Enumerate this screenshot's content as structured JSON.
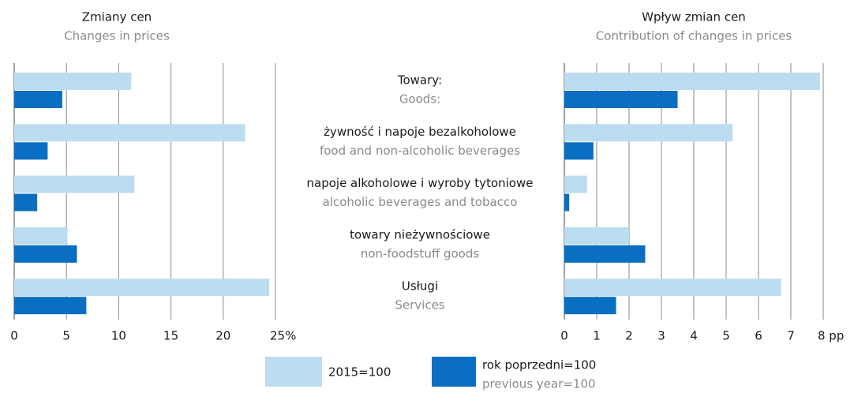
{
  "chart_data": [
    {
      "type": "bar",
      "orientation": "horizontal",
      "title": "Zmiany cen",
      "subtitle": "Changes in prices",
      "categories": [
        "Towary:",
        "żywność i napoje bezalkoholowe",
        "napoje alkoholowe i wyroby tytoniowe",
        "towary nieżywnościowe",
        "Usługi"
      ],
      "categories_en": [
        "Goods:",
        "food and non-alcoholic beverages",
        "alcoholic beverages and tobacco",
        "non-foodstuff goods",
        "Services"
      ],
      "series": [
        {
          "name": "2015=100",
          "color": "#bcdcf0",
          "values": [
            11.2,
            22.1,
            11.5,
            5.1,
            24.4
          ]
        },
        {
          "name": "rok poprzedni=100",
          "name_en": "previous year=100",
          "color": "#0a6fc2",
          "values": [
            4.6,
            3.2,
            2.2,
            6.0,
            6.9
          ]
        }
      ],
      "xlim": [
        0,
        25
      ],
      "xticks": [
        0,
        5,
        10,
        15,
        20,
        {
          "value": 25,
          "label": "25%"
        }
      ],
      "grid": true
    },
    {
      "type": "bar",
      "orientation": "horizontal",
      "title": "Wpływ zmian cen",
      "subtitle": "Contribution of changes in prices",
      "series": [
        {
          "color": "#bcdcf0",
          "values": [
            7.9,
            5.2,
            0.7,
            2.0,
            6.7
          ]
        },
        {
          "color": "#0a6fc2",
          "values": [
            3.5,
            0.9,
            0.15,
            2.5,
            1.6
          ]
        }
      ],
      "xlim": [
        0,
        8
      ],
      "xticks": [
        0,
        1,
        2,
        3,
        4,
        5,
        6,
        7,
        {
          "value": 8,
          "label": "8 pp"
        }
      ],
      "grid": true
    }
  ]
}
